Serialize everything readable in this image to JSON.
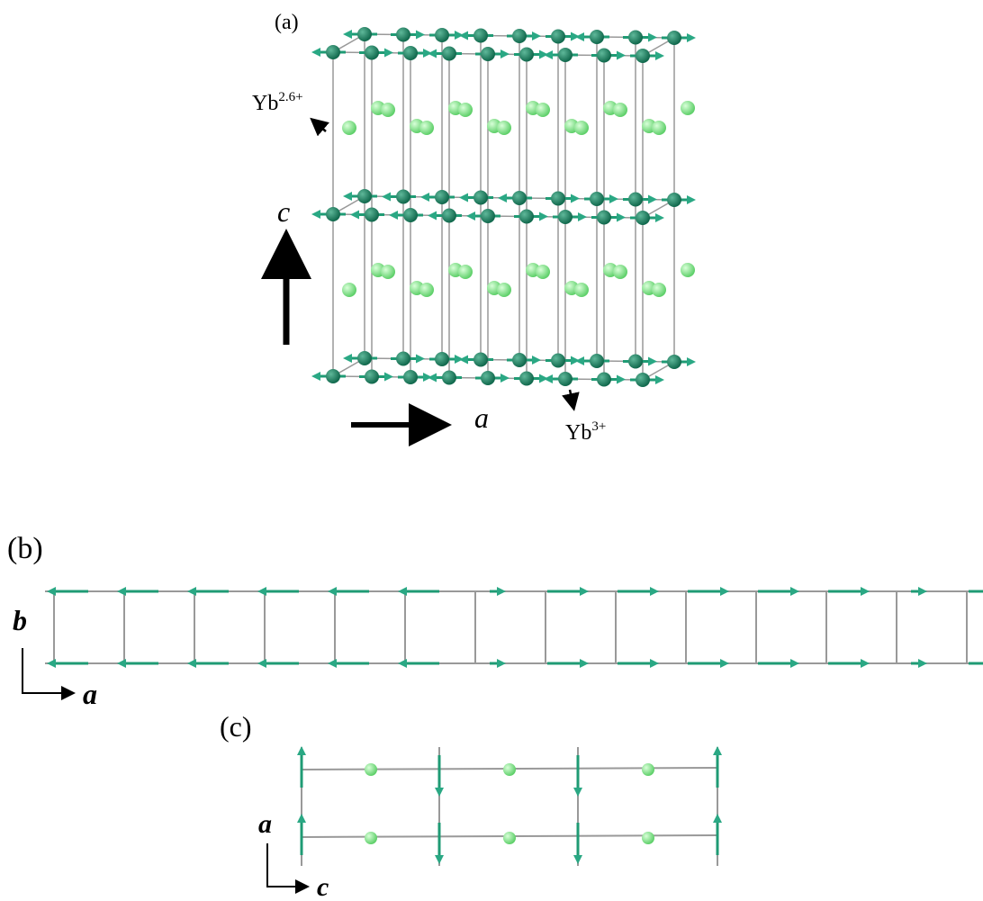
{
  "panels": [
    {
      "label": "(a)",
      "axes": [
        "c",
        "a"
      ],
      "annotations": [
        {
          "text": "Yb",
          "sup": "2.6+"
        },
        {
          "text": "Yb",
          "sup": "3+"
        }
      ]
    },
    {
      "label": "(b)",
      "axes": [
        "b",
        "a"
      ]
    },
    {
      "label": "(c)",
      "axes": [
        "a",
        "c"
      ]
    }
  ]
}
